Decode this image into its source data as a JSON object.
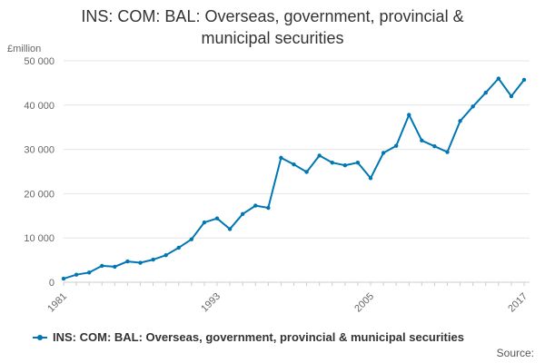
{
  "chart_data": {
    "type": "line",
    "title_line1": "INS: COM: BAL: Overseas, government, provincial &",
    "title_line2": "municipal securities",
    "ylabel": "£million",
    "ylim": [
      0,
      50000
    ],
    "yticks": [
      0,
      10000,
      20000,
      30000,
      40000,
      50000
    ],
    "ytick_labels": [
      "0",
      "10 000",
      "20 000",
      "30 000",
      "40 000",
      "50 000"
    ],
    "xlim": [
      1981,
      2017
    ],
    "xtick_labels": [
      "1981",
      "1993",
      "2005",
      "2017"
    ],
    "x": [
      1981,
      1982,
      1983,
      1984,
      1985,
      1986,
      1987,
      1988,
      1989,
      1990,
      1991,
      1992,
      1993,
      1994,
      1995,
      1996,
      1997,
      1998,
      1999,
      2000,
      2001,
      2002,
      2003,
      2004,
      2005,
      2006,
      2007,
      2008,
      2009,
      2010,
      2011,
      2012,
      2013,
      2014,
      2015,
      2016,
      2017
    ],
    "series": [
      {
        "name": "INS: COM: BAL: Overseas, government, provincial & municipal securities",
        "color": "#0077b3",
        "values": [
          800,
          1700,
          2200,
          3700,
          3500,
          4700,
          4400,
          5100,
          6100,
          7800,
          9700,
          13500,
          14400,
          12000,
          15400,
          17300,
          16800,
          28100,
          26600,
          24900,
          28600,
          27000,
          26400,
          27000,
          23500,
          29200,
          30800,
          37800,
          32000,
          30700,
          29400,
          36400,
          39700,
          42800,
          46000,
          42000,
          45700
        ]
      }
    ],
    "grid": "horizontal",
    "legend_position": "bottom"
  },
  "source_label": "Source:"
}
